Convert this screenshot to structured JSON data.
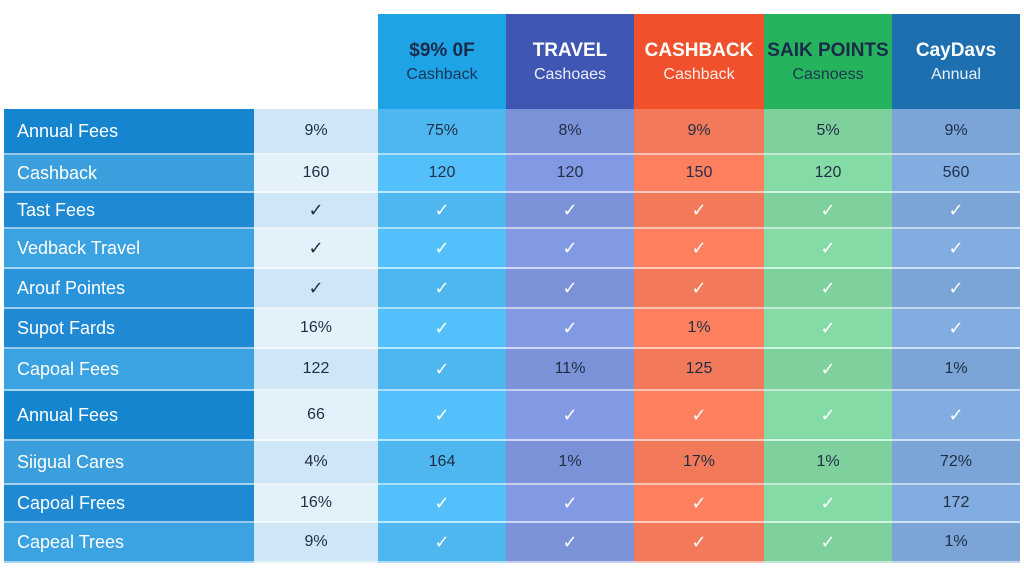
{
  "columns": [
    {
      "line1": "$9% 0F",
      "line2": "Cashback",
      "color": "#1ea4e6",
      "body": "#4fb7ef"
    },
    {
      "line1": "TRAVEL",
      "line2": "Cashoaes",
      "color": "#3f57b3",
      "body": "#7c92d8"
    },
    {
      "line1": "CASHBACK",
      "line2": "Cashback",
      "color": "#f0502c",
      "body": "#f27a5a"
    },
    {
      "line1": "SAIK POINTS",
      "line2": "Casnoess",
      "color": "#26b35d",
      "body": "#7ed19d"
    },
    {
      "line1": "CayDavs",
      "line2": "Annual",
      "color": "#1d6fb0",
      "body": "#7ba5d6"
    }
  ],
  "rows": [
    {
      "label": "Annual Fees",
      "base": "9%",
      "vals": [
        "75%",
        "8%",
        "9%",
        "5%",
        "9%"
      ]
    },
    {
      "label": "Cashback",
      "base": "160",
      "vals": [
        "120",
        "120",
        "150",
        "120",
        "560"
      ]
    },
    {
      "label": "Tast Fees",
      "base": "✓",
      "vals": [
        "✓",
        "✓",
        "✓",
        "✓",
        "✓"
      ]
    },
    {
      "label": "Vedback Travel",
      "base": "✓",
      "vals": [
        "✓",
        "✓",
        "✓",
        "✓",
        "✓"
      ]
    },
    {
      "label": "Arouf Pointes",
      "base": "✓",
      "vals": [
        "✓",
        "✓",
        "✓",
        "✓",
        "✓"
      ]
    },
    {
      "label": "Supot Fards",
      "base": "16%",
      "vals": [
        "✓",
        "✓",
        "1%",
        "✓",
        "✓"
      ]
    },
    {
      "label": "Capoal Fees",
      "base": "122",
      "vals": [
        "✓",
        "11%",
        "125",
        "✓",
        "1%"
      ]
    },
    {
      "label": "Annual Fees",
      "base": "66",
      "vals": [
        "✓",
        "✓",
        "✓",
        "✓",
        "✓"
      ]
    },
    {
      "label": "Siigual Cares",
      "base": "4%",
      "vals": [
        "164",
        "1%",
        "17%",
        "1%",
        "72%"
      ]
    },
    {
      "label": "Capoal Frees",
      "base": "16%",
      "vals": [
        "✓",
        "✓",
        "✓",
        "✓",
        "172"
      ]
    },
    {
      "label": "Capeal Trees",
      "base": "9%",
      "vals": [
        "✓",
        "✓",
        "✓",
        "✓",
        "1%"
      ]
    }
  ]
}
